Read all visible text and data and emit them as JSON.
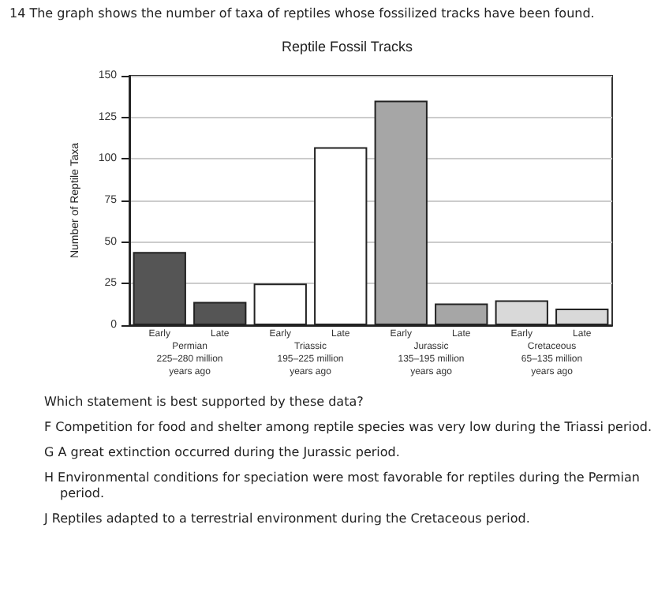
{
  "chart_data": {
    "type": "bar",
    "title": "Reptile Fossil Tracks",
    "ylabel": "Number of Reptile Taxa",
    "categories": [
      "Early",
      "Late",
      "Early",
      "Late",
      "Early",
      "Late",
      "Early",
      "Late"
    ],
    "values": [
      44,
      14,
      25,
      107,
      135,
      13,
      15,
      10
    ],
    "colors": [
      "#555555",
      "#555555",
      "#ffffff",
      "#ffffff",
      "#a6a6a6",
      "#a6a6a6",
      "#d9d9d9",
      "#d9d9d9"
    ],
    "ylim": [
      0,
      150
    ],
    "yticks": [
      0,
      25,
      50,
      75,
      100,
      125,
      150
    ],
    "grid": "y",
    "annotations": [
      "14  The graph shows the number of taxa of reptiles whose fossilized tracks have been found.",
      "Permian\n225–280 million\nyears ago",
      "Triassic\n195–225 million\nyears ago",
      "Jurassic\n135–195 million\nyears ago",
      "Cretaceous\n65–135 million\nyears ago",
      "Which statement is best supported by these data?",
      "F  Competition for food and shelter among reptile species was very low during the Triassi period.",
      "G  A great extinction occurred during the Jurassic period.",
      "H  Environmental conditions for speciation were most favorable for reptiles during the Permian period.",
      "J  Reptiles adapted to a terrestrial environment during the Cretaceous period."
    ]
  }
}
